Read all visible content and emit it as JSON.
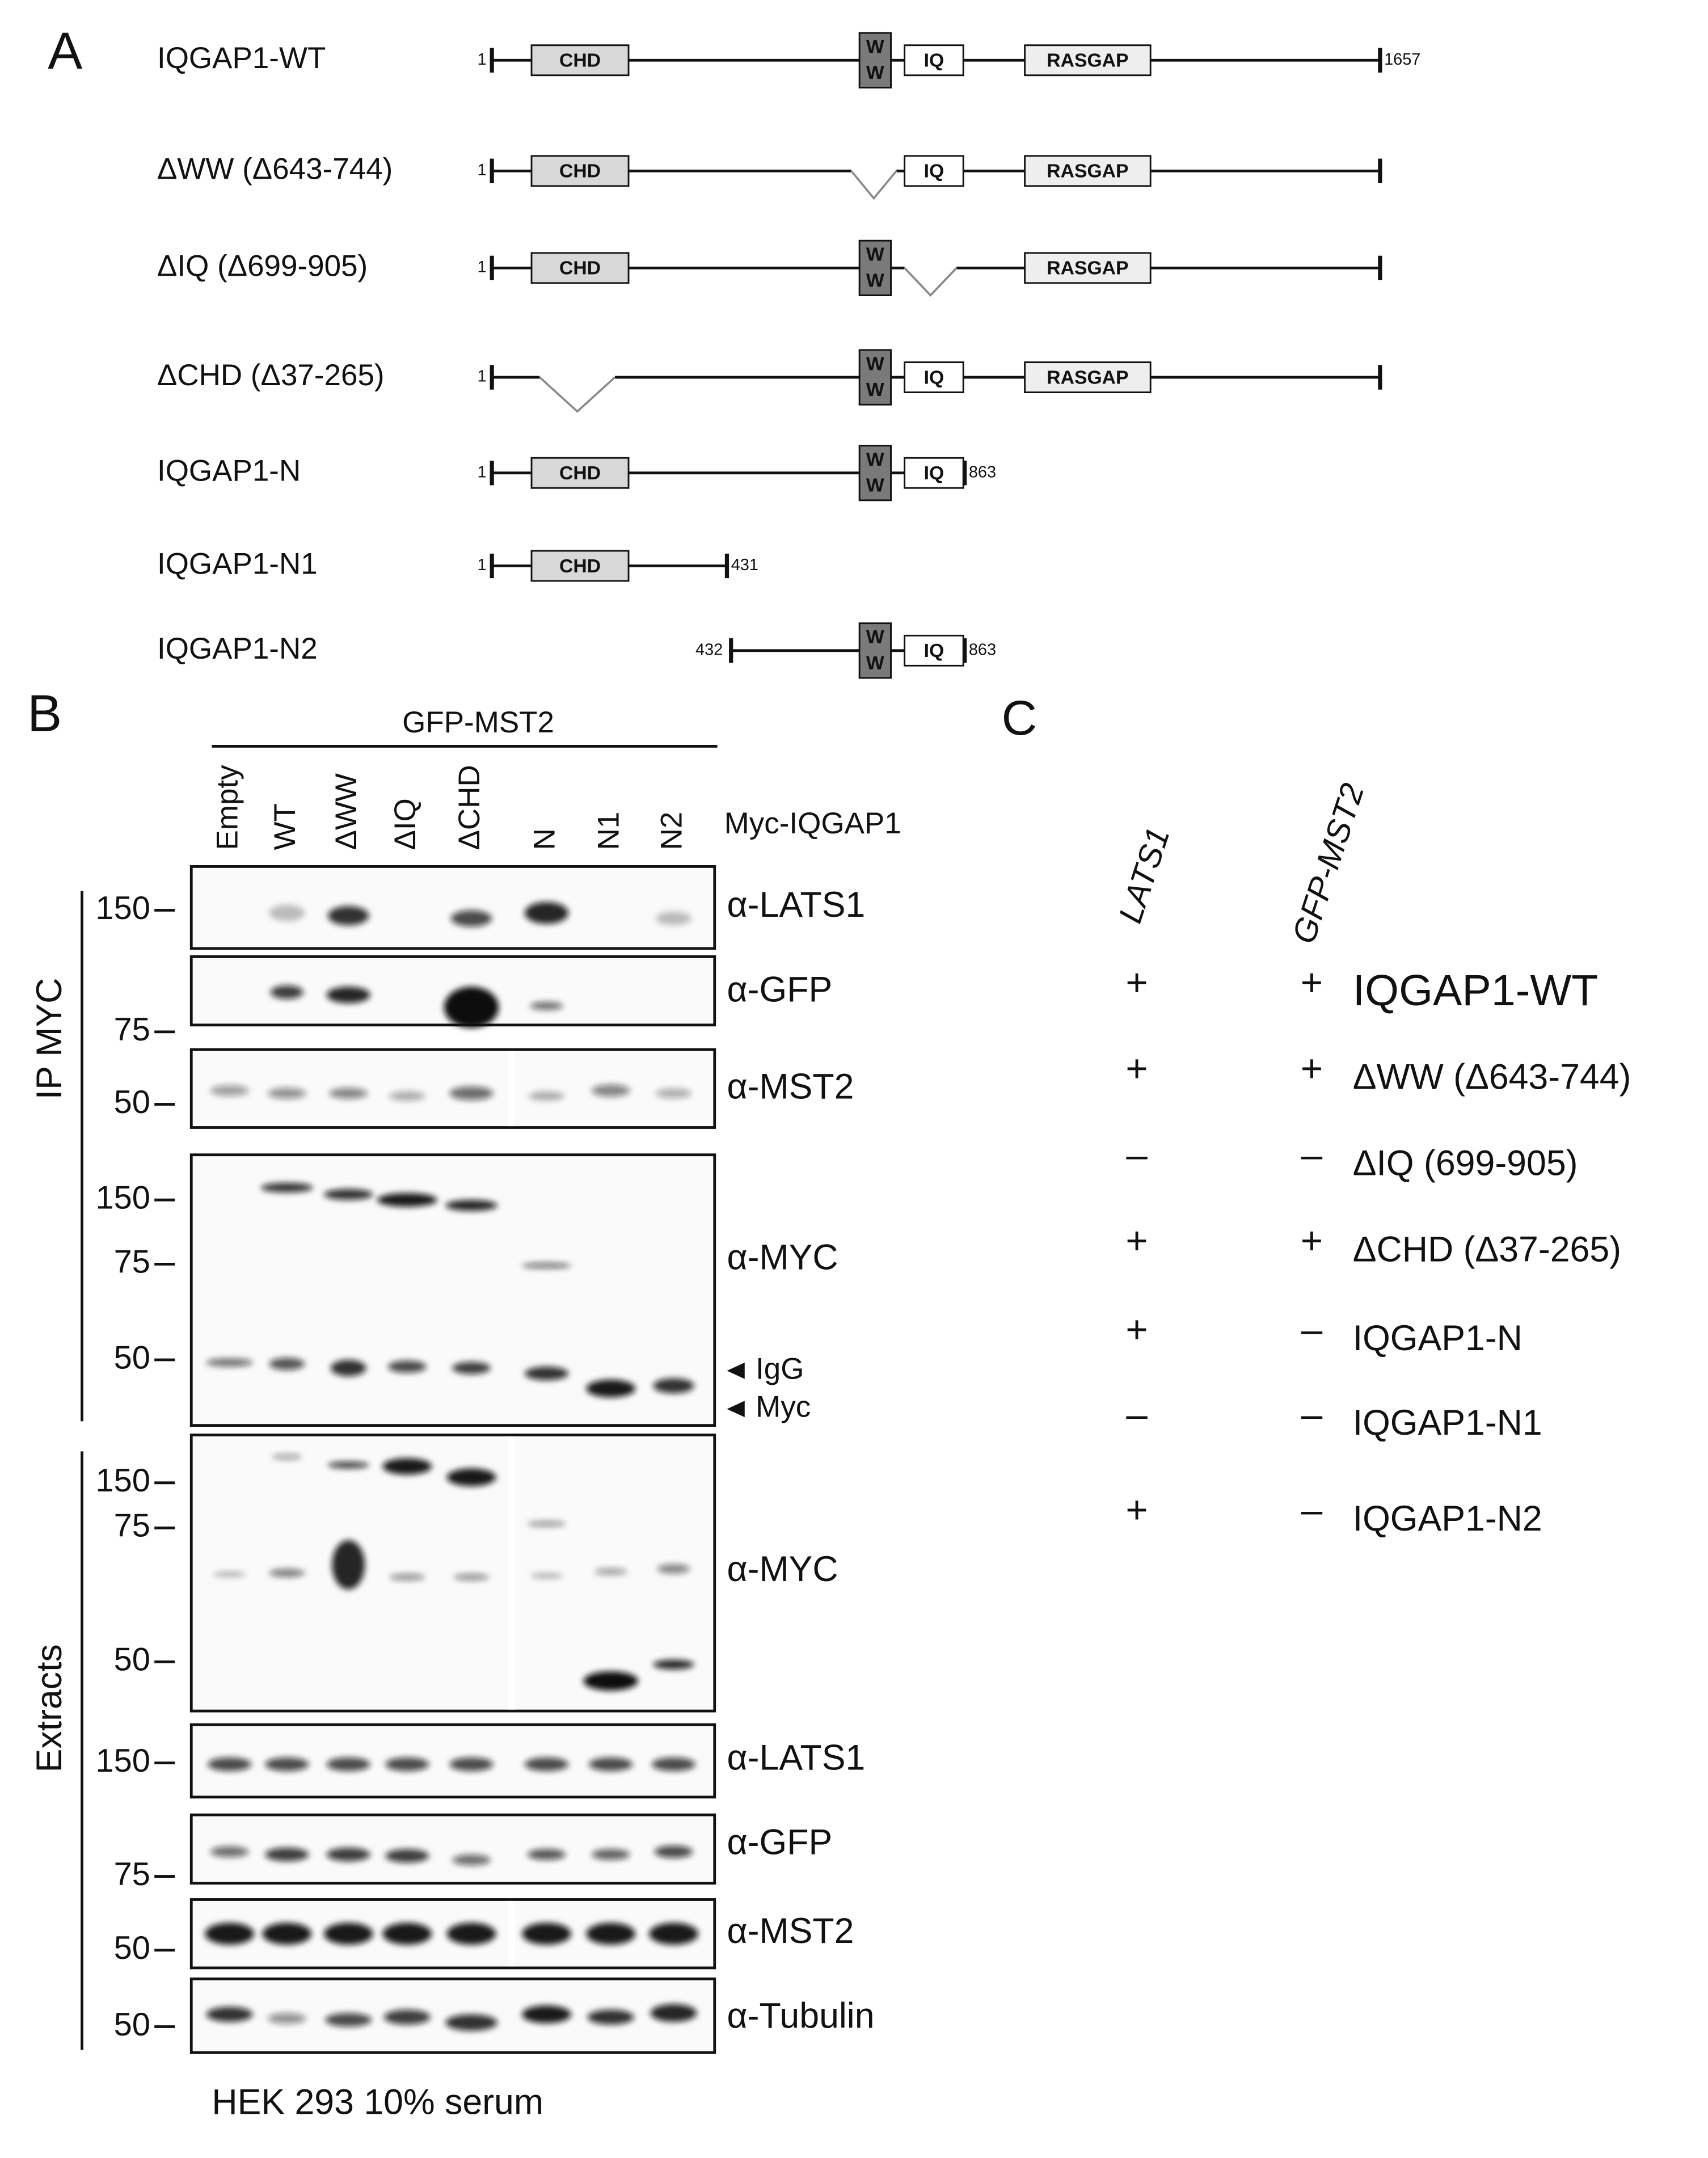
{
  "panel_a": {
    "label": "A",
    "constructs": [
      {
        "name": "IQGAP1-WT",
        "start": 1,
        "end": 1657,
        "chd": "CHD",
        "ww": [
          "W",
          "W"
        ],
        "iq": "IQ",
        "rasgap": "RASGAP"
      },
      {
        "name": "ΔWW (Δ643-744)",
        "start": 1,
        "chd": "CHD",
        "iq": "IQ",
        "rasgap": "RASGAP"
      },
      {
        "name": "ΔIQ (Δ699-905)",
        "start": 1,
        "chd": "CHD",
        "ww": [
          "W",
          "W"
        ],
        "rasgap": "RASGAP"
      },
      {
        "name": "ΔCHD (Δ37-265)",
        "start": 1,
        "ww": [
          "W",
          "W"
        ],
        "iq": "IQ",
        "rasgap": "RASGAP"
      },
      {
        "name": "IQGAP1-N",
        "start": 1,
        "end": 863,
        "chd": "CHD",
        "ww": [
          "W",
          "W"
        ],
        "iq": "IQ"
      },
      {
        "name": "IQGAP1-N1",
        "start": 1,
        "end": 431,
        "chd": "CHD"
      },
      {
        "name": "IQGAP1-N2",
        "start": 432,
        "end": 863,
        "ww": [
          "W",
          "W"
        ],
        "iq": "IQ"
      }
    ]
  },
  "panel_b": {
    "label": "B",
    "treatment": "GFP-MST2",
    "lane_header": "Myc-IQGAP1",
    "lanes": [
      "Empty",
      "WT",
      "ΔWW",
      "ΔIQ",
      "ΔCHD",
      "N",
      "N1",
      "N2"
    ],
    "ip_label": "IP MYC",
    "extracts_label": "Extracts",
    "blots": [
      {
        "antibody": "α-LATS1",
        "markers": [
          150
        ]
      },
      {
        "antibody": "α-GFP",
        "markers": [
          75
        ]
      },
      {
        "antibody": "α-MST2",
        "markers": [
          50
        ]
      },
      {
        "antibody": "α-MYC",
        "markers": [
          150,
          75,
          50
        ],
        "annotations": [
          "IgG",
          "Myc"
        ]
      },
      {
        "antibody": "α-MYC",
        "markers": [
          150,
          75,
          50
        ]
      },
      {
        "antibody": "α-LATS1",
        "markers": [
          150
        ]
      },
      {
        "antibody": "α-GFP",
        "markers": [
          75
        ]
      },
      {
        "antibody": "α-MST2",
        "markers": [
          50
        ]
      },
      {
        "antibody": "α-Tubulin",
        "markers": [
          50
        ]
      }
    ],
    "footer": "HEK 293 10% serum"
  },
  "panel_c": {
    "label": "C",
    "columns": [
      "LATS1",
      "GFP-MST2"
    ],
    "rows": [
      {
        "lats1": "+",
        "mst2": "+",
        "name": "IQGAP1-WT"
      },
      {
        "lats1": "+",
        "mst2": "+",
        "name": "ΔWW (Δ643-744)"
      },
      {
        "lats1": "–",
        "mst2": "–",
        "name": "ΔIQ (699-905)"
      },
      {
        "lats1": "+",
        "mst2": "+",
        "name": "ΔCHD (Δ37-265)"
      },
      {
        "lats1": "+",
        "mst2": "–",
        "name": "IQGAP1-N"
      },
      {
        "lats1": "–",
        "mst2": "–",
        "name": "IQGAP1-N1"
      },
      {
        "lats1": "+",
        "mst2": "–",
        "name": "IQGAP1-N2"
      }
    ]
  }
}
